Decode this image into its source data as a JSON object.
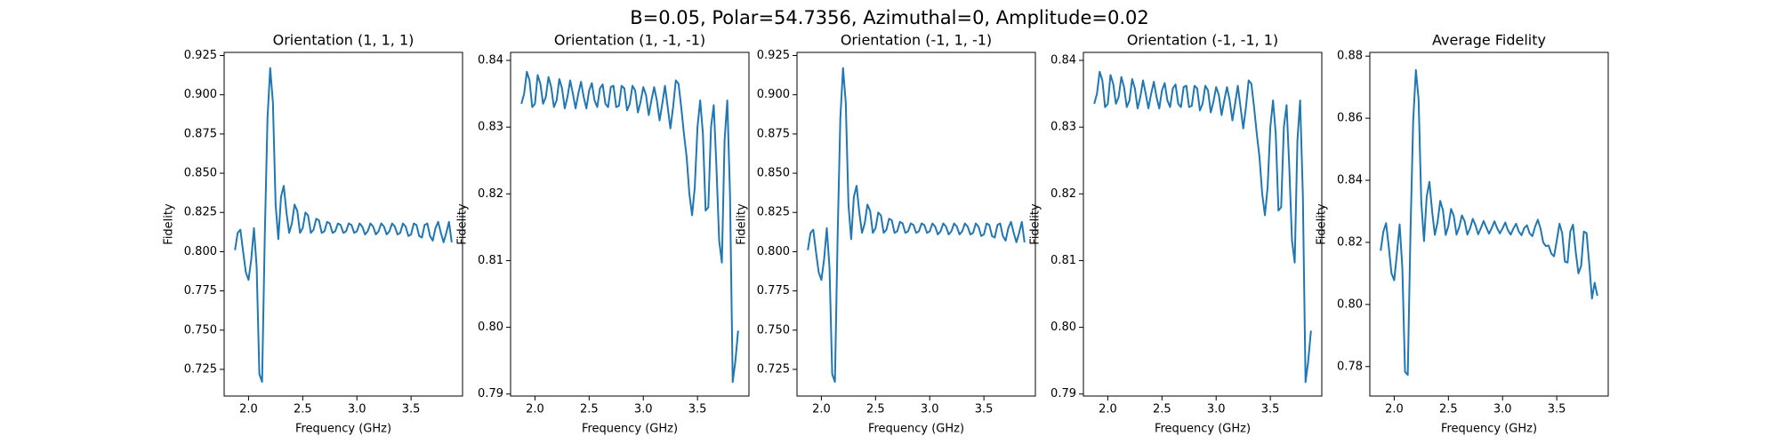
{
  "title": "B=0.05, Polar=54.7356, Azimuthal=0, Amplitude=0.02",
  "chart_data": [
    {
      "type": "line",
      "title": "Orientation (1, 1, 1)",
      "x_label": "Frequency (GHz)",
      "y_label": "Fidelity",
      "color": "#1f77b4",
      "x": [
        1.875,
        1.9,
        1.925,
        1.95,
        1.975,
        2.0,
        2.025,
        2.05,
        2.075,
        2.1,
        2.125,
        2.15,
        2.175,
        2.2,
        2.225,
        2.25,
        2.275,
        2.3,
        2.325,
        2.35,
        2.375,
        2.4,
        2.425,
        2.45,
        2.475,
        2.5,
        2.525,
        2.55,
        2.575,
        2.6,
        2.625,
        2.65,
        2.675,
        2.7,
        2.725,
        2.75,
        2.775,
        2.8,
        2.825,
        2.85,
        2.875,
        2.9,
        2.925,
        2.95,
        2.975,
        3.0,
        3.025,
        3.05,
        3.075,
        3.1,
        3.125,
        3.15,
        3.175,
        3.2,
        3.225,
        3.25,
        3.275,
        3.3,
        3.325,
        3.35,
        3.375,
        3.4,
        3.425,
        3.45,
        3.475,
        3.5,
        3.525,
        3.55,
        3.575,
        3.6,
        3.625,
        3.65,
        3.675,
        3.7,
        3.725,
        3.75,
        3.775,
        3.8,
        3.825,
        3.85,
        3.875
      ],
      "values": [
        0.801,
        0.812,
        0.814,
        0.8,
        0.787,
        0.782,
        0.795,
        0.815,
        0.79,
        0.722,
        0.717,
        0.81,
        0.885,
        0.917,
        0.895,
        0.83,
        0.808,
        0.835,
        0.842,
        0.825,
        0.812,
        0.818,
        0.83,
        0.826,
        0.812,
        0.815,
        0.825,
        0.823,
        0.812,
        0.814,
        0.821,
        0.82,
        0.812,
        0.813,
        0.819,
        0.818,
        0.812,
        0.813,
        0.818,
        0.817,
        0.812,
        0.813,
        0.818,
        0.817,
        0.812,
        0.813,
        0.818,
        0.816,
        0.811,
        0.813,
        0.818,
        0.816,
        0.811,
        0.813,
        0.818,
        0.816,
        0.811,
        0.813,
        0.818,
        0.816,
        0.811,
        0.812,
        0.818,
        0.816,
        0.81,
        0.811,
        0.818,
        0.817,
        0.81,
        0.809,
        0.817,
        0.818,
        0.81,
        0.807,
        0.815,
        0.819,
        0.812,
        0.806,
        0.812,
        0.819,
        0.806
      ],
      "xlim": [
        1.775,
        3.975
      ],
      "ylim": [
        0.708,
        0.927
      ],
      "xticks": [
        {
          "value": 2,
          "label": "2.0"
        },
        2.5,
        {
          "value": 3,
          "label": "3.0"
        },
        3.5
      ],
      "yticks": [
        0.725,
        {
          "value": 0.75,
          "label": "0.750"
        },
        0.775,
        {
          "value": 0.8,
          "label": "0.800"
        },
        0.825,
        {
          "value": 0.85,
          "label": "0.850"
        },
        0.875,
        {
          "value": 0.9,
          "label": "0.900"
        },
        0.925
      ]
    },
    {
      "type": "line",
      "title": "Orientation (1, -1, -1)",
      "x_label": "Frequency (GHz)",
      "y_label": "Fidelity",
      "color": "#1f77b4",
      "x": [
        1.875,
        1.9,
        1.925,
        1.95,
        1.975,
        2.0,
        2.025,
        2.05,
        2.075,
        2.1,
        2.125,
        2.15,
        2.175,
        2.2,
        2.225,
        2.25,
        2.275,
        2.3,
        2.325,
        2.35,
        2.375,
        2.4,
        2.425,
        2.45,
        2.475,
        2.5,
        2.525,
        2.55,
        2.575,
        2.6,
        2.625,
        2.65,
        2.675,
        2.7,
        2.725,
        2.75,
        2.775,
        2.8,
        2.825,
        2.85,
        2.875,
        2.9,
        2.925,
        2.95,
        2.975,
        3.0,
        3.025,
        3.05,
        3.075,
        3.1,
        3.125,
        3.15,
        3.175,
        3.2,
        3.225,
        3.25,
        3.275,
        3.3,
        3.325,
        3.35,
        3.375,
        3.4,
        3.425,
        3.45,
        3.475,
        3.5,
        3.525,
        3.55,
        3.575,
        3.6,
        3.625,
        3.65,
        3.675,
        3.7,
        3.725,
        3.75,
        3.775,
        3.8,
        3.825,
        3.85,
        3.875
      ],
      "values": [
        0.8335,
        0.835,
        0.8383,
        0.837,
        0.833,
        0.8335,
        0.8378,
        0.8365,
        0.8335,
        0.8345,
        0.8375,
        0.836,
        0.833,
        0.834,
        0.8372,
        0.8358,
        0.8328,
        0.8345,
        0.837,
        0.835,
        0.8328,
        0.835,
        0.8368,
        0.8345,
        0.8328,
        0.8355,
        0.8366,
        0.834,
        0.833,
        0.8358,
        0.8364,
        0.8335,
        0.833,
        0.836,
        0.8362,
        0.833,
        0.8332,
        0.8362,
        0.8358,
        0.8325,
        0.8335,
        0.8362,
        0.8355,
        0.8322,
        0.8338,
        0.836,
        0.8348,
        0.8318,
        0.834,
        0.836,
        0.834,
        0.831,
        0.8335,
        0.8362,
        0.833,
        0.8298,
        0.833,
        0.837,
        0.8365,
        0.833,
        0.829,
        0.8255,
        0.82,
        0.8168,
        0.821,
        0.83,
        0.834,
        0.829,
        0.8175,
        0.818,
        0.83,
        0.8333,
        0.824,
        0.813,
        0.8097,
        0.828,
        0.834,
        0.82,
        0.7918,
        0.795,
        0.7995
      ],
      "xlim": [
        1.775,
        3.975
      ],
      "ylim": [
        0.7897,
        0.8412
      ],
      "xticks": [
        {
          "value": 2,
          "label": "2.0"
        },
        2.5,
        {
          "value": 3,
          "label": "3.0"
        },
        3.5
      ],
      "yticks": [
        0.79,
        {
          "value": 0.8,
          "label": "0.80"
        },
        0.81,
        0.82,
        0.83,
        0.84
      ]
    },
    {
      "type": "line",
      "title": "Orientation (-1, 1, -1)",
      "x_label": "Frequency (GHz)",
      "y_label": "Fidelity",
      "color": "#1f77b4",
      "x": [
        1.875,
        1.9,
        1.925,
        1.95,
        1.975,
        2.0,
        2.025,
        2.05,
        2.075,
        2.1,
        2.125,
        2.15,
        2.175,
        2.2,
        2.225,
        2.25,
        2.275,
        2.3,
        2.325,
        2.35,
        2.375,
        2.4,
        2.425,
        2.45,
        2.475,
        2.5,
        2.525,
        2.55,
        2.575,
        2.6,
        2.625,
        2.65,
        2.675,
        2.7,
        2.725,
        2.75,
        2.775,
        2.8,
        2.825,
        2.85,
        2.875,
        2.9,
        2.925,
        2.95,
        2.975,
        3.0,
        3.025,
        3.05,
        3.075,
        3.1,
        3.125,
        3.15,
        3.175,
        3.2,
        3.225,
        3.25,
        3.275,
        3.3,
        3.325,
        3.35,
        3.375,
        3.4,
        3.425,
        3.45,
        3.475,
        3.5,
        3.525,
        3.55,
        3.575,
        3.6,
        3.625,
        3.65,
        3.675,
        3.7,
        3.725,
        3.75,
        3.775,
        3.8,
        3.825,
        3.85,
        3.875
      ],
      "values": [
        0.801,
        0.812,
        0.814,
        0.8,
        0.787,
        0.782,
        0.795,
        0.815,
        0.79,
        0.722,
        0.717,
        0.81,
        0.885,
        0.917,
        0.895,
        0.83,
        0.808,
        0.835,
        0.842,
        0.825,
        0.812,
        0.818,
        0.83,
        0.826,
        0.812,
        0.815,
        0.825,
        0.823,
        0.812,
        0.814,
        0.821,
        0.82,
        0.812,
        0.813,
        0.819,
        0.818,
        0.812,
        0.813,
        0.818,
        0.817,
        0.812,
        0.813,
        0.818,
        0.817,
        0.812,
        0.813,
        0.818,
        0.816,
        0.811,
        0.813,
        0.818,
        0.816,
        0.811,
        0.813,
        0.818,
        0.816,
        0.811,
        0.813,
        0.818,
        0.816,
        0.811,
        0.812,
        0.818,
        0.816,
        0.81,
        0.811,
        0.818,
        0.817,
        0.81,
        0.809,
        0.817,
        0.818,
        0.81,
        0.807,
        0.815,
        0.819,
        0.812,
        0.806,
        0.812,
        0.819,
        0.806
      ],
      "xlim": [
        1.775,
        3.975
      ],
      "ylim": [
        0.708,
        0.927
      ],
      "xticks": [
        {
          "value": 2,
          "label": "2.0"
        },
        2.5,
        {
          "value": 3,
          "label": "3.0"
        },
        3.5
      ],
      "yticks": [
        0.725,
        {
          "value": 0.75,
          "label": "0.750"
        },
        0.775,
        {
          "value": 0.8,
          "label": "0.800"
        },
        0.825,
        {
          "value": 0.85,
          "label": "0.850"
        },
        0.875,
        {
          "value": 0.9,
          "label": "0.900"
        },
        0.925
      ]
    },
    {
      "type": "line",
      "title": "Orientation (-1, -1, 1)",
      "x_label": "Frequency (GHz)",
      "y_label": "Fidelity",
      "color": "#1f77b4",
      "x": [
        1.875,
        1.9,
        1.925,
        1.95,
        1.975,
        2.0,
        2.025,
        2.05,
        2.075,
        2.1,
        2.125,
        2.15,
        2.175,
        2.2,
        2.225,
        2.25,
        2.275,
        2.3,
        2.325,
        2.35,
        2.375,
        2.4,
        2.425,
        2.45,
        2.475,
        2.5,
        2.525,
        2.55,
        2.575,
        2.6,
        2.625,
        2.65,
        2.675,
        2.7,
        2.725,
        2.75,
        2.775,
        2.8,
        2.825,
        2.85,
        2.875,
        2.9,
        2.925,
        2.95,
        2.975,
        3.0,
        3.025,
        3.05,
        3.075,
        3.1,
        3.125,
        3.15,
        3.175,
        3.2,
        3.225,
        3.25,
        3.275,
        3.3,
        3.325,
        3.35,
        3.375,
        3.4,
        3.425,
        3.45,
        3.475,
        3.5,
        3.525,
        3.55,
        3.575,
        3.6,
        3.625,
        3.65,
        3.675,
        3.7,
        3.725,
        3.75,
        3.775,
        3.8,
        3.825,
        3.85,
        3.875
      ],
      "values": [
        0.8335,
        0.835,
        0.8383,
        0.837,
        0.833,
        0.8335,
        0.8378,
        0.8365,
        0.8335,
        0.8345,
        0.8375,
        0.836,
        0.833,
        0.834,
        0.8372,
        0.8358,
        0.8328,
        0.8345,
        0.837,
        0.835,
        0.8328,
        0.835,
        0.8368,
        0.8345,
        0.8328,
        0.8355,
        0.8366,
        0.834,
        0.833,
        0.8358,
        0.8364,
        0.8335,
        0.833,
        0.836,
        0.8362,
        0.833,
        0.8332,
        0.8362,
        0.8358,
        0.8325,
        0.8335,
        0.8362,
        0.8355,
        0.8322,
        0.8338,
        0.836,
        0.8348,
        0.8318,
        0.834,
        0.836,
        0.834,
        0.831,
        0.8335,
        0.8362,
        0.833,
        0.8298,
        0.833,
        0.837,
        0.8365,
        0.833,
        0.829,
        0.8255,
        0.82,
        0.8168,
        0.821,
        0.83,
        0.834,
        0.829,
        0.8175,
        0.818,
        0.83,
        0.8333,
        0.824,
        0.813,
        0.8097,
        0.828,
        0.834,
        0.82,
        0.7918,
        0.795,
        0.7995
      ],
      "xlim": [
        1.775,
        3.975
      ],
      "ylim": [
        0.7897,
        0.8412
      ],
      "xticks": [
        {
          "value": 2,
          "label": "2.0"
        },
        2.5,
        {
          "value": 3,
          "label": "3.0"
        },
        3.5
      ],
      "yticks": [
        0.79,
        {
          "value": 0.8,
          "label": "0.80"
        },
        0.81,
        0.82,
        0.83,
        0.84
      ]
    },
    {
      "type": "line",
      "title": "Average Fidelity",
      "x_label": "Frequency (GHz)",
      "y_label": "Fidelity",
      "color": "#1f77b4",
      "x": [
        1.875,
        1.9,
        1.925,
        1.95,
        1.975,
        2.0,
        2.025,
        2.05,
        2.075,
        2.1,
        2.125,
        2.15,
        2.175,
        2.2,
        2.225,
        2.25,
        2.275,
        2.3,
        2.325,
        2.35,
        2.375,
        2.4,
        2.425,
        2.45,
        2.475,
        2.5,
        2.525,
        2.55,
        2.575,
        2.6,
        2.625,
        2.65,
        2.675,
        2.7,
        2.725,
        2.75,
        2.775,
        2.8,
        2.825,
        2.85,
        2.875,
        2.9,
        2.925,
        2.95,
        2.975,
        3.0,
        3.025,
        3.05,
        3.075,
        3.1,
        3.125,
        3.15,
        3.175,
        3.2,
        3.225,
        3.25,
        3.275,
        3.3,
        3.325,
        3.35,
        3.375,
        3.4,
        3.425,
        3.45,
        3.475,
        3.5,
        3.525,
        3.55,
        3.575,
        3.6,
        3.625,
        3.65,
        3.675,
        3.7,
        3.725,
        3.75,
        3.775,
        3.8,
        3.825,
        3.85,
        3.875
      ],
      "values": [
        0.8173,
        0.8235,
        0.8262,
        0.8185,
        0.81,
        0.8078,
        0.8164,
        0.8258,
        0.8118,
        0.7783,
        0.7773,
        0.823,
        0.859,
        0.8755,
        0.8661,
        0.8329,
        0.8204,
        0.8348,
        0.8395,
        0.83,
        0.8224,
        0.8265,
        0.8334,
        0.8303,
        0.8224,
        0.8253,
        0.8308,
        0.8285,
        0.8225,
        0.8249,
        0.8287,
        0.8268,
        0.8225,
        0.8245,
        0.8276,
        0.8255,
        0.8226,
        0.8246,
        0.8269,
        0.8248,
        0.8228,
        0.8246,
        0.8268,
        0.8246,
        0.8229,
        0.8245,
        0.8264,
        0.8239,
        0.8225,
        0.8245,
        0.826,
        0.8235,
        0.8223,
        0.8246,
        0.8255,
        0.8229,
        0.822,
        0.825,
        0.8273,
        0.8245,
        0.82,
        0.8188,
        0.819,
        0.8164,
        0.8155,
        0.8205,
        0.826,
        0.823,
        0.8138,
        0.8135,
        0.8235,
        0.8257,
        0.817,
        0.81,
        0.8124,
        0.8235,
        0.823,
        0.813,
        0.8019,
        0.807,
        0.8028
      ],
      "xlim": [
        1.775,
        3.975
      ],
      "ylim": [
        0.7705,
        0.8812
      ],
      "xticks": [
        {
          "value": 2,
          "label": "2.0"
        },
        2.5,
        {
          "value": 3,
          "label": "3.0"
        },
        3.5
      ],
      "yticks": [
        0.78,
        {
          "value": 0.8,
          "label": "0.80"
        },
        0.82,
        0.84,
        0.86,
        0.88
      ]
    }
  ]
}
